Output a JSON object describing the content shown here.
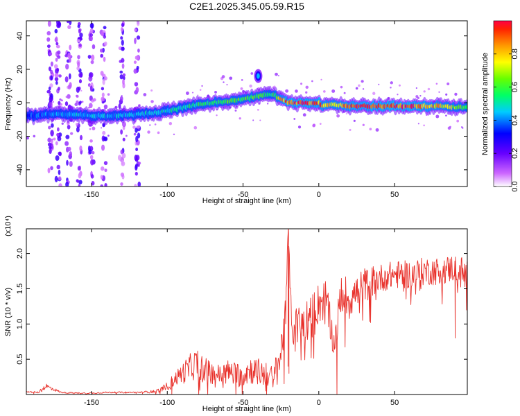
{
  "page_title": "C2E1.2025.345.05.59.R15",
  "chart_data": [
    {
      "type": "heatmap",
      "title": "C2E1.2025.345.05.59.R15",
      "xlabel": "Height of straight line (km)",
      "ylabel": "Frequency (Hz)",
      "xlim": [
        -193,
        98
      ],
      "ylim": [
        -50,
        49
      ],
      "x_ticks": [
        -150,
        -100,
        -50,
        0,
        50
      ],
      "y_ticks": [
        -40,
        -20,
        0,
        20,
        40
      ],
      "grid": false,
      "colorbar": {
        "label": "Normalized spectral amplitude",
        "range": [
          0.0,
          1.0
        ],
        "ticks": [
          0.0,
          0.2,
          0.4,
          0.6,
          0.8
        ],
        "tick_labels": [
          "0.0",
          "0.2",
          "0.4",
          "0.6",
          "0.8"
        ],
        "colors": [
          "#ffffff",
          "#9b30ff",
          "#3030ff",
          "#00bfff",
          "#00ff00",
          "#ffff00",
          "#ff8000",
          "#ff0000"
        ]
      },
      "ridge": {
        "x": [
          -193,
          -180,
          -160,
          -140,
          -120,
          -100,
          -90,
          -80,
          -70,
          -60,
          -50,
          -40,
          -30,
          -25,
          -20,
          -10,
          0,
          3,
          10,
          20,
          40,
          60,
          80,
          98
        ],
        "y": [
          -8,
          -7,
          -7,
          -8,
          -7,
          -5,
          -3,
          -1,
          0,
          1,
          2,
          4,
          5,
          2,
          0,
          0,
          0,
          -2,
          -1,
          -2,
          -2,
          -2,
          -2,
          -3
        ],
        "amplitude": [
          0.35,
          0.4,
          0.45,
          0.45,
          0.45,
          0.5,
          0.5,
          0.55,
          0.6,
          0.6,
          0.6,
          0.65,
          0.55,
          0.8,
          0.95,
          0.95,
          0.9,
          0.85,
          0.8,
          0.9,
          0.95,
          0.95,
          0.8,
          0.6
        ]
      },
      "blob": {
        "x": -40,
        "y": 16,
        "amplitude": 0.4
      },
      "noise_streaks_x": [
        -177,
        -172,
        -165,
        -158,
        -150,
        -142,
        -130,
        -120
      ]
    },
    {
      "type": "line",
      "xlabel": "Height of straight line (km)",
      "ylabel": "SNR (10 * v/v)",
      "y_scale_label": "(x10⁴)",
      "xlim": [
        -193,
        98
      ],
      "ylim": [
        0,
        2.35
      ],
      "x_ticks": [
        -150,
        -100,
        -50,
        0,
        50
      ],
      "y_ticks": [
        0.5,
        1.0,
        1.5,
        2.0
      ],
      "y_tick_labels": [
        "0.5",
        "1.0",
        "1.5",
        "2.0"
      ],
      "line_color": "#e8302a",
      "grid": false,
      "series": [
        {
          "x": [
            -193,
            -185,
            -180,
            -170,
            -160,
            -150,
            -140,
            -130,
            -120,
            -110,
            -105,
            -100,
            -95,
            -90,
            -85,
            -80,
            -75,
            -70,
            -65,
            -60,
            -55,
            -50,
            -45,
            -40,
            -35,
            -30,
            -25,
            -22,
            -20,
            -18,
            -15,
            -10,
            -5,
            0,
            5,
            10,
            15,
            20,
            25,
            30,
            40,
            50,
            60,
            70,
            80,
            90,
            98
          ],
          "y": [
            0.04,
            0.03,
            0.12,
            0.03,
            0.02,
            0.02,
            0.03,
            0.03,
            0.03,
            0.04,
            0.06,
            0.12,
            0.22,
            0.3,
            0.38,
            0.45,
            0.35,
            0.3,
            0.28,
            0.32,
            0.28,
            0.3,
            0.35,
            0.32,
            0.28,
            0.25,
            0.55,
            1.3,
            2.3,
            0.95,
            0.95,
            1.05,
            1.1,
            1.3,
            1.35,
            0.7,
            1.45,
            1.35,
            1.45,
            1.55,
            1.65,
            1.7,
            1.7,
            1.75,
            1.75,
            1.8,
            1.65
          ],
          "noise_amp": [
            0.01,
            0.01,
            0.04,
            0.01,
            0.01,
            0.01,
            0.01,
            0.01,
            0.01,
            0.02,
            0.03,
            0.06,
            0.1,
            0.15,
            0.2,
            0.22,
            0.18,
            0.15,
            0.15,
            0.18,
            0.18,
            0.2,
            0.2,
            0.2,
            0.18,
            0.15,
            0.3,
            0.4,
            0.1,
            0.25,
            0.3,
            0.3,
            0.3,
            0.3,
            0.3,
            0.2,
            0.3,
            0.3,
            0.25,
            0.25,
            0.2,
            0.2,
            0.2,
            0.2,
            0.2,
            0.2,
            0.3
          ]
        }
      ]
    }
  ]
}
